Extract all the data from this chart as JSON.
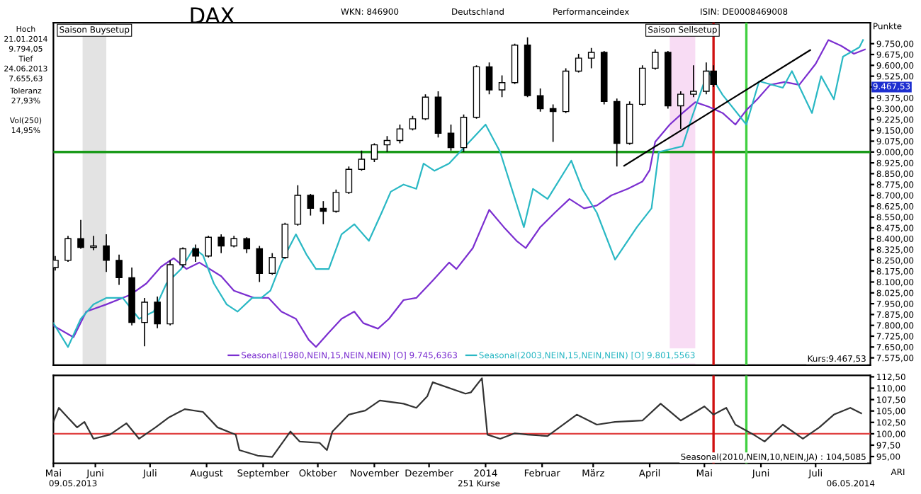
{
  "chart_data": [
    {
      "type": "candlestick",
      "title": "DAX",
      "ylabel": "Punkte",
      "x": [
        "2013-05-10",
        "2013-05-17",
        "2013-05-24",
        "2013-05-31",
        "2013-06-07",
        "2013-06-14",
        "2013-06-21",
        "2013-06-28",
        "2013-07-05",
        "2013-07-12",
        "2013-07-19",
        "2013-07-26",
        "2013-08-02",
        "2013-08-09",
        "2013-08-16",
        "2013-08-23",
        "2013-08-30",
        "2013-09-06",
        "2013-09-13",
        "2013-09-20",
        "2013-09-27",
        "2013-10-04",
        "2013-10-11",
        "2013-10-18",
        "2013-10-25",
        "2013-11-01",
        "2013-11-08",
        "2013-11-15",
        "2013-11-22",
        "2013-11-29",
        "2013-12-06",
        "2013-12-13",
        "2013-12-20",
        "2013-12-27",
        "2014-01-03",
        "2014-01-10",
        "2014-01-17",
        "2014-01-24",
        "2014-01-31",
        "2014-02-07",
        "2014-02-14",
        "2014-02-21",
        "2014-02-28",
        "2014-03-07",
        "2014-03-14",
        "2014-03-21",
        "2014-03-28",
        "2014-04-04",
        "2014-04-11",
        "2014-04-18",
        "2014-04-25",
        "2014-05-02",
        "2014-05-06"
      ],
      "ohlc": [
        [
          8200,
          8280,
          8180,
          8250
        ],
        [
          8250,
          8420,
          8240,
          8400
        ],
        [
          8400,
          8530,
          8330,
          8340
        ],
        [
          8340,
          8420,
          8320,
          8350
        ],
        [
          8350,
          8430,
          8170,
          8250
        ],
        [
          8250,
          8290,
          8080,
          8130
        ],
        [
          8130,
          8200,
          7800,
          7820
        ],
        [
          7820,
          7990,
          7655,
          7960
        ],
        [
          7960,
          8000,
          7780,
          7810
        ],
        [
          7810,
          8250,
          7800,
          8220
        ],
        [
          8220,
          8340,
          8200,
          8330
        ],
        [
          8330,
          8360,
          8240,
          8280
        ],
        [
          8280,
          8420,
          8270,
          8410
        ],
        [
          8410,
          8430,
          8300,
          8350
        ],
        [
          8350,
          8420,
          8340,
          8400
        ],
        [
          8400,
          8410,
          8300,
          8330
        ],
        [
          8330,
          8350,
          8100,
          8160
        ],
        [
          8160,
          8300,
          8150,
          8270
        ],
        [
          8270,
          8510,
          8260,
          8500
        ],
        [
          8500,
          8770,
          8490,
          8700
        ],
        [
          8700,
          8710,
          8560,
          8610
        ],
        [
          8610,
          8660,
          8500,
          8590
        ],
        [
          8590,
          8740,
          8580,
          8720
        ],
        [
          8720,
          8900,
          8710,
          8880
        ],
        [
          8880,
          9010,
          8870,
          8950
        ],
        [
          8950,
          9060,
          8930,
          9050
        ],
        [
          9050,
          9110,
          9000,
          9080
        ],
        [
          9080,
          9190,
          9060,
          9160
        ],
        [
          9160,
          9250,
          9150,
          9230
        ],
        [
          9230,
          9400,
          9220,
          9380
        ],
        [
          9380,
          9420,
          9100,
          9130
        ],
        [
          9130,
          9190,
          9010,
          9030
        ],
        [
          9030,
          9260,
          9000,
          9240
        ],
        [
          9240,
          9600,
          9230,
          9590
        ],
        [
          9590,
          9620,
          9400,
          9430
        ],
        [
          9430,
          9530,
          9380,
          9480
        ],
        [
          9480,
          9750,
          9470,
          9740
        ],
        [
          9740,
          9794,
          9380,
          9390
        ],
        [
          9390,
          9440,
          9280,
          9300
        ],
        [
          9300,
          9330,
          9070,
          9280
        ],
        [
          9280,
          9580,
          9270,
          9560
        ],
        [
          9560,
          9680,
          9550,
          9650
        ],
        [
          9650,
          9720,
          9580,
          9690
        ],
        [
          9690,
          9700,
          9330,
          9350
        ],
        [
          9350,
          9370,
          8900,
          9060
        ],
        [
          9060,
          9350,
          9050,
          9330
        ],
        [
          9330,
          9600,
          9320,
          9580
        ],
        [
          9580,
          9710,
          9570,
          9690
        ],
        [
          9690,
          9700,
          9300,
          9320
        ],
        [
          9320,
          9420,
          9160,
          9400
        ],
        [
          9400,
          9600,
          9380,
          9420
        ],
        [
          9420,
          9620,
          9400,
          9560
        ],
        [
          9560,
          9600,
          9450,
          9467.53
        ]
      ],
      "series": [
        {
          "type": "line",
          "name": "Seasonal(1980,NEIN,15,NEIN,NEIN) [O] 9.745,6363",
          "color": "#7b2fd0",
          "x": [
            "2013-05-09",
            "2013-05-20",
            "2013-05-27",
            "2013-06-07",
            "2013-06-20",
            "2013-06-29",
            "2013-07-07",
            "2013-07-14",
            "2013-07-21",
            "2013-07-28",
            "2013-08-09",
            "2013-08-16",
            "2013-08-27",
            "2013-09-04",
            "2013-09-11",
            "2013-09-19",
            "2013-09-26",
            "2013-09-30",
            "2013-10-07",
            "2013-10-14",
            "2013-10-21",
            "2013-10-26",
            "2013-11-03",
            "2013-11-09",
            "2013-11-17",
            "2013-11-24",
            "2013-12-03",
            "2013-12-12",
            "2013-12-16",
            "2013-12-25",
            "2014-01-03",
            "2014-01-11",
            "2014-01-18",
            "2014-01-23",
            "2014-01-31",
            "2014-02-08",
            "2014-02-16",
            "2014-02-24",
            "2014-03-03",
            "2014-03-11",
            "2014-03-20",
            "2014-03-28",
            "2014-04-01",
            "2014-04-04",
            "2014-04-12",
            "2014-04-19",
            "2014-04-26",
            "2014-05-03",
            "2014-05-11",
            "2014-05-18",
            "2014-05-24",
            "2014-05-30",
            "2014-06-06",
            "2014-06-14",
            "2014-06-22",
            "2014-07-01",
            "2014-07-08",
            "2014-07-15",
            "2014-07-22",
            "2014-07-28"
          ],
          "values": [
            7797,
            7718,
            7895,
            7945,
            8010,
            8090,
            8205,
            8265,
            8190,
            8235,
            8140,
            8040,
            7990,
            7990,
            7895,
            7845,
            7700,
            7650,
            7750,
            7845,
            7895,
            7815,
            7777,
            7845,
            7975,
            7990,
            8110,
            8235,
            8190,
            8335,
            8600,
            8480,
            8385,
            8335,
            8480,
            8580,
            8675,
            8610,
            8630,
            8700,
            8745,
            8795,
            8875,
            9070,
            9190,
            9270,
            9345,
            9315,
            9270,
            9190,
            9290,
            9365,
            9465,
            9485,
            9465,
            9610,
            9775,
            9735,
            9680,
            9710
          ]
        },
        {
          "type": "line",
          "name": "Seasonal(2003,NEIN,15,NEIN,NEIN) [O] 9.801,5563",
          "color": "#2ab8c4",
          "x": [
            "2013-05-09",
            "2013-05-17",
            "2013-05-24",
            "2013-05-31",
            "2013-06-07",
            "2013-06-16",
            "2013-06-25",
            "2013-07-03",
            "2013-07-10",
            "2013-07-18",
            "2013-07-25",
            "2013-07-30",
            "2013-08-05",
            "2013-08-12",
            "2013-08-18",
            "2013-08-26",
            "2013-08-31",
            "2013-09-05",
            "2013-09-11",
            "2013-09-19",
            "2013-09-25",
            "2013-09-30",
            "2013-10-07",
            "2013-10-14",
            "2013-10-21",
            "2013-10-29",
            "2013-11-05",
            "2013-11-10",
            "2013-11-17",
            "2013-11-24",
            "2013-11-28",
            "2013-12-04",
            "2013-12-12",
            "2014-01-01",
            "2014-01-09",
            "2014-01-22",
            "2014-01-27",
            "2014-02-04",
            "2014-02-17",
            "2014-02-23",
            "2014-03-03",
            "2014-03-13",
            "2014-03-25",
            "2014-04-02",
            "2014-04-06",
            "2014-04-19",
            "2014-04-24",
            "2014-05-03",
            "2014-05-11",
            "2014-05-24",
            "2014-05-31",
            "2014-06-13",
            "2014-06-18",
            "2014-06-29",
            "2014-07-04",
            "2014-07-11",
            "2014-07-16",
            "2014-07-25",
            "2014-07-27"
          ],
          "values": [
            7815,
            7650,
            7845,
            7945,
            7990,
            7990,
            7845,
            7895,
            8090,
            8190,
            8335,
            8285,
            8090,
            7945,
            7895,
            7990,
            7990,
            8040,
            8235,
            8430,
            8285,
            8190,
            8190,
            8430,
            8500,
            8385,
            8580,
            8725,
            8775,
            8745,
            8920,
            8870,
            8920,
            9190,
            9000,
            8480,
            8745,
            8675,
            8940,
            8745,
            8580,
            8255,
            8480,
            8610,
            9000,
            9040,
            9235,
            9560,
            9395,
            9190,
            9490,
            9445,
            9560,
            9270,
            9525,
            9365,
            9660,
            9725,
            9775
          ]
        },
        {
          "type": "line",
          "color": "#000000",
          "x": [
            "2014-03-18",
            "2014-06-28"
          ],
          "values": [
            8905,
            9705
          ]
        }
      ],
      "xlim": [
        "2013-05-09",
        "2014-07-31"
      ],
      "ylim": [
        7525,
        9895
      ],
      "yticks": [
        {
          "value": 7575,
          "label": "7.575,00"
        },
        {
          "value": 7650,
          "label": "7.650,00"
        },
        {
          "value": 7725,
          "label": "7.725,00"
        },
        {
          "value": 7800,
          "label": "7.800,00"
        },
        {
          "value": 7875,
          "label": "7.875,00"
        },
        {
          "value": 7950,
          "label": "7.950,00"
        },
        {
          "value": 8025,
          "label": "8.025,00"
        },
        {
          "value": 8100,
          "label": "8.100,00"
        },
        {
          "value": 8175,
          "label": "8.175,00"
        },
        {
          "value": 8250,
          "label": "8.250,00"
        },
        {
          "value": 8325,
          "label": "8.325,00"
        },
        {
          "value": 8400,
          "label": "8.400,00"
        },
        {
          "value": 8475,
          "label": "8.475,00"
        },
        {
          "value": 8550,
          "label": "8.550,00"
        },
        {
          "value": 8625,
          "label": "8.625,00"
        },
        {
          "value": 8700,
          "label": "8.700,00"
        },
        {
          "value": 8775,
          "label": "8.775,00"
        },
        {
          "value": 8850,
          "label": "8.850,00"
        },
        {
          "value": 8925,
          "label": "8.925,00"
        },
        {
          "value": 9000,
          "label": "9.000,00"
        },
        {
          "value": 9075,
          "label": "9.075,00"
        },
        {
          "value": 9150,
          "label": "9.150,00"
        },
        {
          "value": 9225,
          "label": "9.225,00"
        },
        {
          "value": 9300,
          "label": "9.300,00"
        },
        {
          "value": 9375,
          "label": "9.375,00"
        },
        {
          "value": 9450,
          "label": null
        },
        {
          "value": 9525,
          "label": "9.525,00"
        },
        {
          "value": 9600,
          "label": "9.600,00"
        },
        {
          "value": 9675,
          "label": "9.675,00"
        },
        {
          "value": 9750,
          "label": "9.750,00"
        }
      ],
      "tick_labels": "y",
      "legend": "bottom",
      "ref_lines": [
        {
          "axis": "y",
          "value": 9000,
          "color": "#1a9a1a"
        },
        {
          "axis": "x",
          "value": "2014-05-06",
          "color": "#d01010"
        },
        {
          "axis": "x",
          "value": "2014-05-24",
          "color": "#40d040"
        }
      ],
      "bands": [
        {
          "axis": "x",
          "from": "2013-05-25",
          "to": "2013-06-07",
          "label": "Saison Buysetup",
          "color": "#d0d0d0"
        },
        {
          "axis": "x",
          "from": "2014-04-12",
          "to": "2014-04-26",
          "label": "Saison Sellsetup",
          "color": "#f4c4ec"
        }
      ],
      "annotations": [
        "WKN: 846900",
        "Deutschland",
        "Performanceindex",
        "ISIN: DE0008469008",
        "Hoch",
        "21.01.2014",
        "9.794,05",
        "Tief",
        "24.06.2013",
        "7.655,63",
        "Toleranz",
        "27,93%",
        "Vol(250)",
        "14,95%",
        "Kurs:9.467,53",
        "9.467,53"
      ]
    },
    {
      "type": "line",
      "series": [
        {
          "color": "#333333",
          "x": [
            "2013-05-09",
            "2013-05-12",
            "2013-05-17",
            "2013-05-22",
            "2013-05-26",
            "2013-05-31",
            "2013-06-09",
            "2013-06-18",
            "2013-06-25",
            "2013-07-04",
            "2013-07-11",
            "2013-07-20",
            "2013-07-30",
            "2013-08-07",
            "2013-08-17",
            "2013-08-19",
            "2013-08-29",
            "2013-09-06",
            "2013-09-16",
            "2013-09-21",
            "2013-10-02",
            "2013-10-06",
            "2013-10-09",
            "2013-10-18",
            "2013-10-27",
            "2013-11-04",
            "2013-11-17",
            "2013-11-24",
            "2013-11-30",
            "2013-12-03",
            "2013-12-21",
            "2013-12-24",
            "2013-12-30",
            "2014-01-02",
            "2014-01-09",
            "2014-01-17",
            "2014-01-24",
            "2014-02-04",
            "2014-02-20",
            "2014-03-03",
            "2014-03-13",
            "2014-03-28",
            "2014-04-07",
            "2014-04-18",
            "2014-05-01",
            "2014-05-06",
            "2014-05-13",
            "2014-05-18",
            "2014-05-28",
            "2014-06-03",
            "2014-06-13",
            "2014-06-24",
            "2014-07-03",
            "2014-07-11",
            "2014-07-20",
            "2014-07-26"
          ],
          "values": [
            102.6,
            105.7,
            103.5,
            101.4,
            102.6,
            98.9,
            99.8,
            102.3,
            98.9,
            101.4,
            103.5,
            105.4,
            104.8,
            101.4,
            99.8,
            96.4,
            95.2,
            94.9,
            100.5,
            98.3,
            98.0,
            96.4,
            100.5,
            104.2,
            105.1,
            107.3,
            106.6,
            105.7,
            108.2,
            111.3,
            108.8,
            109.1,
            112.2,
            99.8,
            98.9,
            100.1,
            99.8,
            99.5,
            104.2,
            102.0,
            102.6,
            102.9,
            106.6,
            102.9,
            106.0,
            104.2,
            105.7,
            102.0,
            99.8,
            98.3,
            102.0,
            98.9,
            101.4,
            104.2,
            105.7,
            104.5
          ]
        }
      ],
      "xlim": [
        "2013-05-09",
        "2014-07-31"
      ],
      "ylim": [
        93.5,
        112.8
      ],
      "xticks": [
        {
          "value": "2013-05-09",
          "label": "Mai"
        },
        {
          "value": "2013-06-01",
          "label": "Juni"
        },
        {
          "value": "2013-07-01",
          "label": "Juli"
        },
        {
          "value": "2013-08-01",
          "label": "August"
        },
        {
          "value": "2013-09-01",
          "label": "September"
        },
        {
          "value": "2013-10-01",
          "label": "Oktober"
        },
        {
          "value": "2013-11-01",
          "label": "November"
        },
        {
          "value": "2013-12-01",
          "label": "Dezember"
        },
        {
          "value": "2014-01-01",
          "label": "2014"
        },
        {
          "value": "2014-02-01",
          "label": "Februar"
        },
        {
          "value": "2014-03-01",
          "label": "März"
        },
        {
          "value": "2014-04-01",
          "label": "April"
        },
        {
          "value": "2014-05-01",
          "label": "Mai"
        },
        {
          "value": "2014-06-01",
          "label": "Juni"
        },
        {
          "value": "2014-07-01",
          "label": "Juli"
        }
      ],
      "yticks": [
        {
          "value": 95,
          "label": "95,00"
        },
        {
          "value": 97.5,
          "label": "97,50"
        },
        {
          "value": 100,
          "label": "100,00"
        },
        {
          "value": 102.5,
          "label": "102,50"
        },
        {
          "value": 105,
          "label": "105,00"
        },
        {
          "value": 107.5,
          "label": "107,50"
        },
        {
          "value": 110,
          "label": "110,00"
        },
        {
          "value": 112.5,
          "label": "112,50"
        }
      ],
      "ref_lines": [
        {
          "axis": "y",
          "value": 100,
          "color": "#e04040"
        },
        {
          "axis": "x",
          "value": "2014-05-06",
          "color": "#d01010"
        },
        {
          "axis": "x",
          "value": "2014-05-24",
          "color": "#40d040"
        }
      ],
      "annotations": [
        "Seasonal(2010,NEIN,10,NEIN,JA) : 104,5085",
        "09.05.2013",
        "251 Kurse",
        "06.05.2014",
        "ARI"
      ]
    }
  ]
}
